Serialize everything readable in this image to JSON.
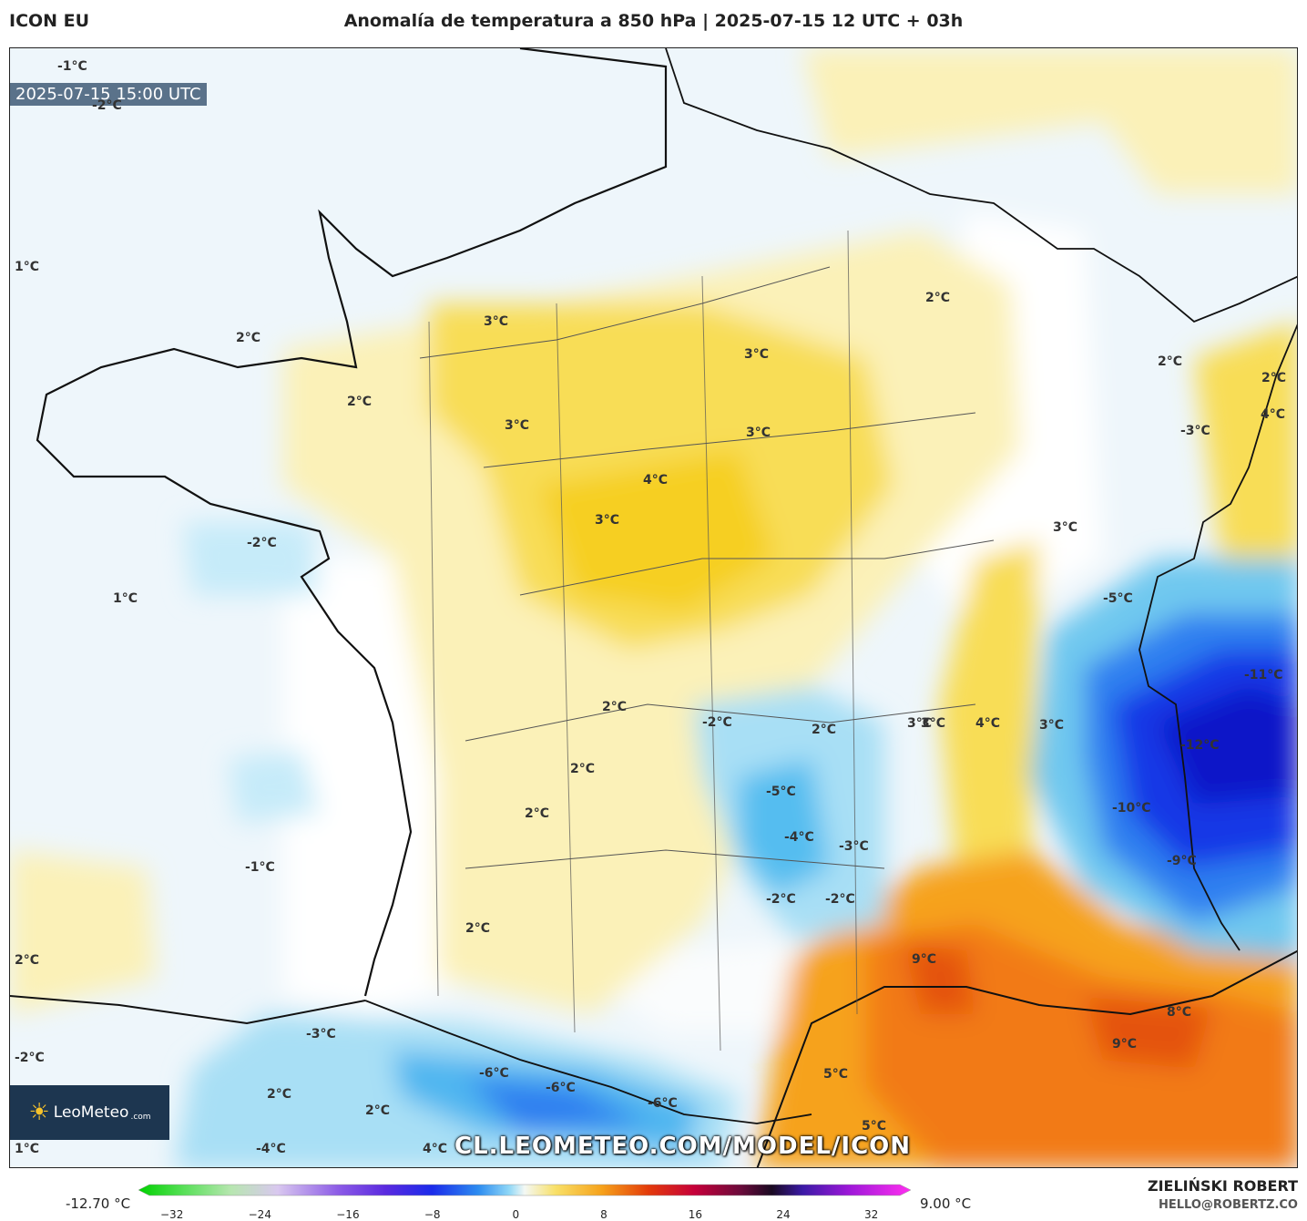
{
  "header": {
    "model": "ICON EU",
    "title": "Anomalía de temperatura a 850 hPa | 2025-07-15 12 UTC + 03h"
  },
  "map": {
    "valid_time": "2025-07-15 15:00 UTC",
    "watermark_url": "CL.LEOMETEO.COM/MODEL/ICON",
    "logo_text": "LeoMeteo",
    "logo_suffix": ".com",
    "labels": [
      {
        "text": "-1°C"
      },
      {
        "text": "-2°C"
      },
      {
        "text": "1°C"
      },
      {
        "text": "2°C"
      },
      {
        "text": "3°C"
      },
      {
        "text": "2°C"
      },
      {
        "text": "3°C"
      },
      {
        "text": "3°C"
      },
      {
        "text": "3°C"
      },
      {
        "text": "2°C"
      },
      {
        "text": "2°C"
      },
      {
        "text": "2°C"
      },
      {
        "text": "4°C"
      },
      {
        "text": "-3°C"
      },
      {
        "text": "4°C"
      },
      {
        "text": "3°C"
      },
      {
        "text": "-2°C"
      },
      {
        "text": "1°C"
      },
      {
        "text": "3°C"
      },
      {
        "text": "3°C"
      },
      {
        "text": "-5°C"
      },
      {
        "text": "-11°C"
      },
      {
        "text": "2°C"
      },
      {
        "text": "-2°C"
      },
      {
        "text": "2°C"
      },
      {
        "text": "3°C"
      },
      {
        "text": "4°C"
      },
      {
        "text": "3°C"
      },
      {
        "text": "-12°C"
      },
      {
        "text": "2°C"
      },
      {
        "text": "-5°C"
      },
      {
        "text": "-10°C"
      },
      {
        "text": "2°C"
      },
      {
        "text": "-4°C"
      },
      {
        "text": "-3°C"
      },
      {
        "text": "-1°C"
      },
      {
        "text": "-9°C"
      },
      {
        "text": "-2°C"
      },
      {
        "text": "-2°C"
      },
      {
        "text": "2°C"
      },
      {
        "text": "2°C"
      },
      {
        "text": "9°C"
      },
      {
        "text": "-3°C"
      },
      {
        "text": "8°C"
      },
      {
        "text": "-2°C"
      },
      {
        "text": "9°C"
      },
      {
        "text": "-6°C"
      },
      {
        "text": "5°C"
      },
      {
        "text": "-6°C"
      },
      {
        "text": "2°C"
      },
      {
        "text": "2°C"
      },
      {
        "text": "-6°C"
      },
      {
        "text": "5°C"
      },
      {
        "text": "1°C"
      },
      {
        "text": "-4°C"
      },
      {
        "text": "4°C"
      }
    ]
  },
  "legend": {
    "min_label": "-12.70 °C",
    "max_label": "9.00 °C",
    "ticks": [
      "−32",
      "−24",
      "−16",
      "−8",
      "0",
      "8",
      "16",
      "24",
      "32"
    ]
  },
  "credits": {
    "author": "ZIELIŃSKI ROBERT",
    "email": "HELLO@ROBERTZ.CO"
  }
}
